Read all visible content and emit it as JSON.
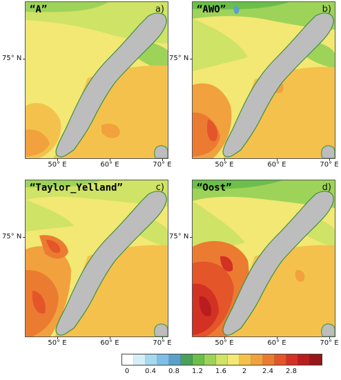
{
  "panels": [
    {
      "title": "“A”",
      "letter": "a)",
      "variant": 0
    },
    {
      "title": "“AWO”",
      "letter": "b)",
      "variant": 1
    },
    {
      "title": "“Taylor_Yelland”",
      "letter": "c)",
      "variant": 2
    },
    {
      "title": "“Oost”",
      "letter": "d)",
      "variant": 3
    }
  ],
  "axes": {
    "lat_label": "75° N",
    "lon_labels": [
      "50° E",
      "60° E",
      "70° E"
    ]
  },
  "colorbar": {
    "tick_labels": [
      "0",
      "0.4",
      "0.8",
      "1.2",
      "1.6",
      "2",
      "2.4",
      "2.8"
    ],
    "colors": [
      "#ffffff",
      "#d6eef8",
      "#a6d8f0",
      "#7dbfe6",
      "#5aa0c8",
      "#4aa15a",
      "#6cbf4a",
      "#9ed35a",
      "#cfe366",
      "#f2e873",
      "#f4c24c",
      "#f1a13d",
      "#ec7b32",
      "#e4552a",
      "#d33124",
      "#b81d1f",
      "#971619"
    ]
  }
}
